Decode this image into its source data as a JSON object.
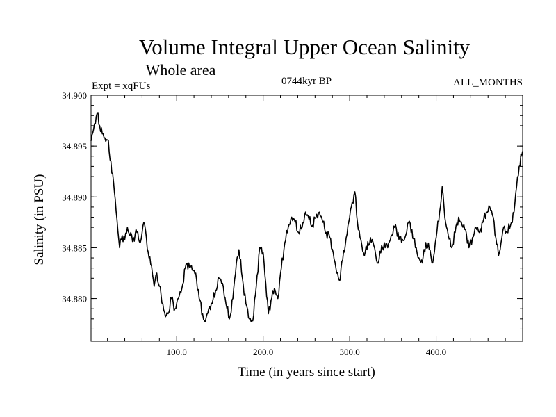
{
  "colors": {
    "background": "#ffffff",
    "line": "#000000"
  },
  "chart_data": {
    "type": "line",
    "title": "Volume Integral Upper Ocean Salinity",
    "subtitle": "Whole area",
    "experiment": "Expt = xqFUs",
    "period": "0744kyr BP",
    "months": "ALL_MONTHS",
    "xlabel": "Time (in years since start)",
    "ylabel": "Salinity (in PSU)",
    "xlim": [
      1,
      500
    ],
    "ylim": [
      34.8758,
      34.9
    ],
    "xticks": [
      {
        "value": 100,
        "label": "100.0"
      },
      {
        "value": 200,
        "label": "200.0"
      },
      {
        "value": 300,
        "label": "300.0"
      },
      {
        "value": 400,
        "label": "400.0"
      }
    ],
    "yticks": [
      {
        "value": 34.88,
        "label": "34.880"
      },
      {
        "value": 34.885,
        "label": "34.885"
      },
      {
        "value": 34.89,
        "label": "34.890"
      },
      {
        "value": 34.895,
        "label": "34.895"
      },
      {
        "value": 34.9,
        "label": "34.900"
      }
    ],
    "series": [
      {
        "name": "salinity",
        "points": [
          [
            1,
            34.8955
          ],
          [
            5,
            34.8972
          ],
          [
            8,
            34.8982
          ],
          [
            11,
            34.897
          ],
          [
            14,
            34.8962
          ],
          [
            17,
            34.8958
          ],
          [
            20,
            34.8956
          ],
          [
            24,
            34.8935
          ],
          [
            28,
            34.8905
          ],
          [
            31,
            34.8878
          ],
          [
            34,
            34.885
          ],
          [
            37,
            34.8862
          ],
          [
            40,
            34.8858
          ],
          [
            43,
            34.887
          ],
          [
            46,
            34.8862
          ],
          [
            50,
            34.886
          ],
          [
            54,
            34.8865
          ],
          [
            58,
            34.8855
          ],
          [
            62,
            34.8875
          ],
          [
            65,
            34.886
          ],
          [
            68,
            34.884
          ],
          [
            71,
            34.8832
          ],
          [
            74,
            34.8812
          ],
          [
            77,
            34.8825
          ],
          [
            80,
            34.8812
          ],
          [
            84,
            34.8795
          ],
          [
            87,
            34.8782
          ],
          [
            90,
            34.8785
          ],
          [
            94,
            34.88
          ],
          [
            98,
            34.879
          ],
          [
            102,
            34.88
          ],
          [
            106,
            34.881
          ],
          [
            110,
            34.883
          ],
          [
            114,
            34.8835
          ],
          [
            118,
            34.8828
          ],
          [
            122,
            34.8825
          ],
          [
            126,
            34.88
          ],
          [
            130,
            34.8785
          ],
          [
            133,
            34.8777
          ],
          [
            137,
            34.879
          ],
          [
            141,
            34.8795
          ],
          [
            145,
            34.8808
          ],
          [
            149,
            34.882
          ],
          [
            153,
            34.8815
          ],
          [
            157,
            34.8795
          ],
          [
            161,
            34.878
          ],
          [
            165,
            34.88
          ],
          [
            169,
            34.8835
          ],
          [
            172,
            34.8848
          ],
          [
            176,
            34.882
          ],
          [
            180,
            34.8795
          ],
          [
            184,
            34.878
          ],
          [
            188,
            34.8778
          ],
          [
            192,
            34.8812
          ],
          [
            196,
            34.885
          ],
          [
            200,
            34.8845
          ],
          [
            203,
            34.8815
          ],
          [
            206,
            34.8785
          ],
          [
            209,
            34.8798
          ],
          [
            213,
            34.881
          ],
          [
            217,
            34.88
          ],
          [
            221,
            34.883
          ],
          [
            225,
            34.8855
          ],
          [
            229,
            34.887
          ],
          [
            233,
            34.888
          ],
          [
            237,
            34.8875
          ],
          [
            241,
            34.8865
          ],
          [
            245,
            34.887
          ],
          [
            249,
            34.8885
          ],
          [
            253,
            34.8878
          ],
          [
            257,
            34.8872
          ],
          [
            261,
            34.888
          ],
          [
            265,
            34.8885
          ],
          [
            269,
            34.8875
          ],
          [
            273,
            34.8865
          ],
          [
            277,
            34.886
          ],
          [
            281,
            34.8845
          ],
          [
            285,
            34.8825
          ],
          [
            288,
            34.8818
          ],
          [
            292,
            34.8838
          ],
          [
            296,
            34.886
          ],
          [
            300,
            34.888
          ],
          [
            303,
            34.8895
          ],
          [
            306,
            34.8905
          ],
          [
            309,
            34.8875
          ],
          [
            312,
            34.886
          ],
          [
            316,
            34.8845
          ],
          [
            320,
            34.8848
          ],
          [
            324,
            34.886
          ],
          [
            328,
            34.8852
          ],
          [
            332,
            34.8835
          ],
          [
            336,
            34.8845
          ],
          [
            340,
            34.8855
          ],
          [
            344,
            34.885
          ],
          [
            348,
            34.8862
          ],
          [
            352,
            34.887
          ],
          [
            356,
            34.8865
          ],
          [
            360,
            34.8855
          ],
          [
            364,
            34.886
          ],
          [
            368,
            34.8875
          ],
          [
            372,
            34.8868
          ],
          [
            376,
            34.885
          ],
          [
            380,
            34.884
          ],
          [
            384,
            34.8835
          ],
          [
            388,
            34.8855
          ],
          [
            392,
            34.8848
          ],
          [
            396,
            34.8835
          ],
          [
            400,
            34.886
          ],
          [
            404,
            34.8885
          ],
          [
            407,
            34.891
          ],
          [
            410,
            34.888
          ],
          [
            414,
            34.8862
          ],
          [
            418,
            34.885
          ],
          [
            422,
            34.8865
          ],
          [
            426,
            34.888
          ],
          [
            430,
            34.8872
          ],
          [
            434,
            34.8868
          ],
          [
            438,
            34.885
          ],
          [
            442,
            34.886
          ],
          [
            446,
            34.887
          ],
          [
            450,
            34.8865
          ],
          [
            454,
            34.8875
          ],
          [
            458,
            34.8885
          ],
          [
            462,
            34.889
          ],
          [
            466,
            34.888
          ],
          [
            469,
            34.886
          ],
          [
            472,
            34.8842
          ],
          [
            475,
            34.8855
          ],
          [
            478,
            34.887
          ],
          [
            482,
            34.8865
          ],
          [
            486,
            34.8872
          ],
          [
            490,
            34.8885
          ],
          [
            493,
            34.891
          ],
          [
            496,
            34.893
          ],
          [
            500,
            34.8945
          ]
        ]
      }
    ]
  }
}
